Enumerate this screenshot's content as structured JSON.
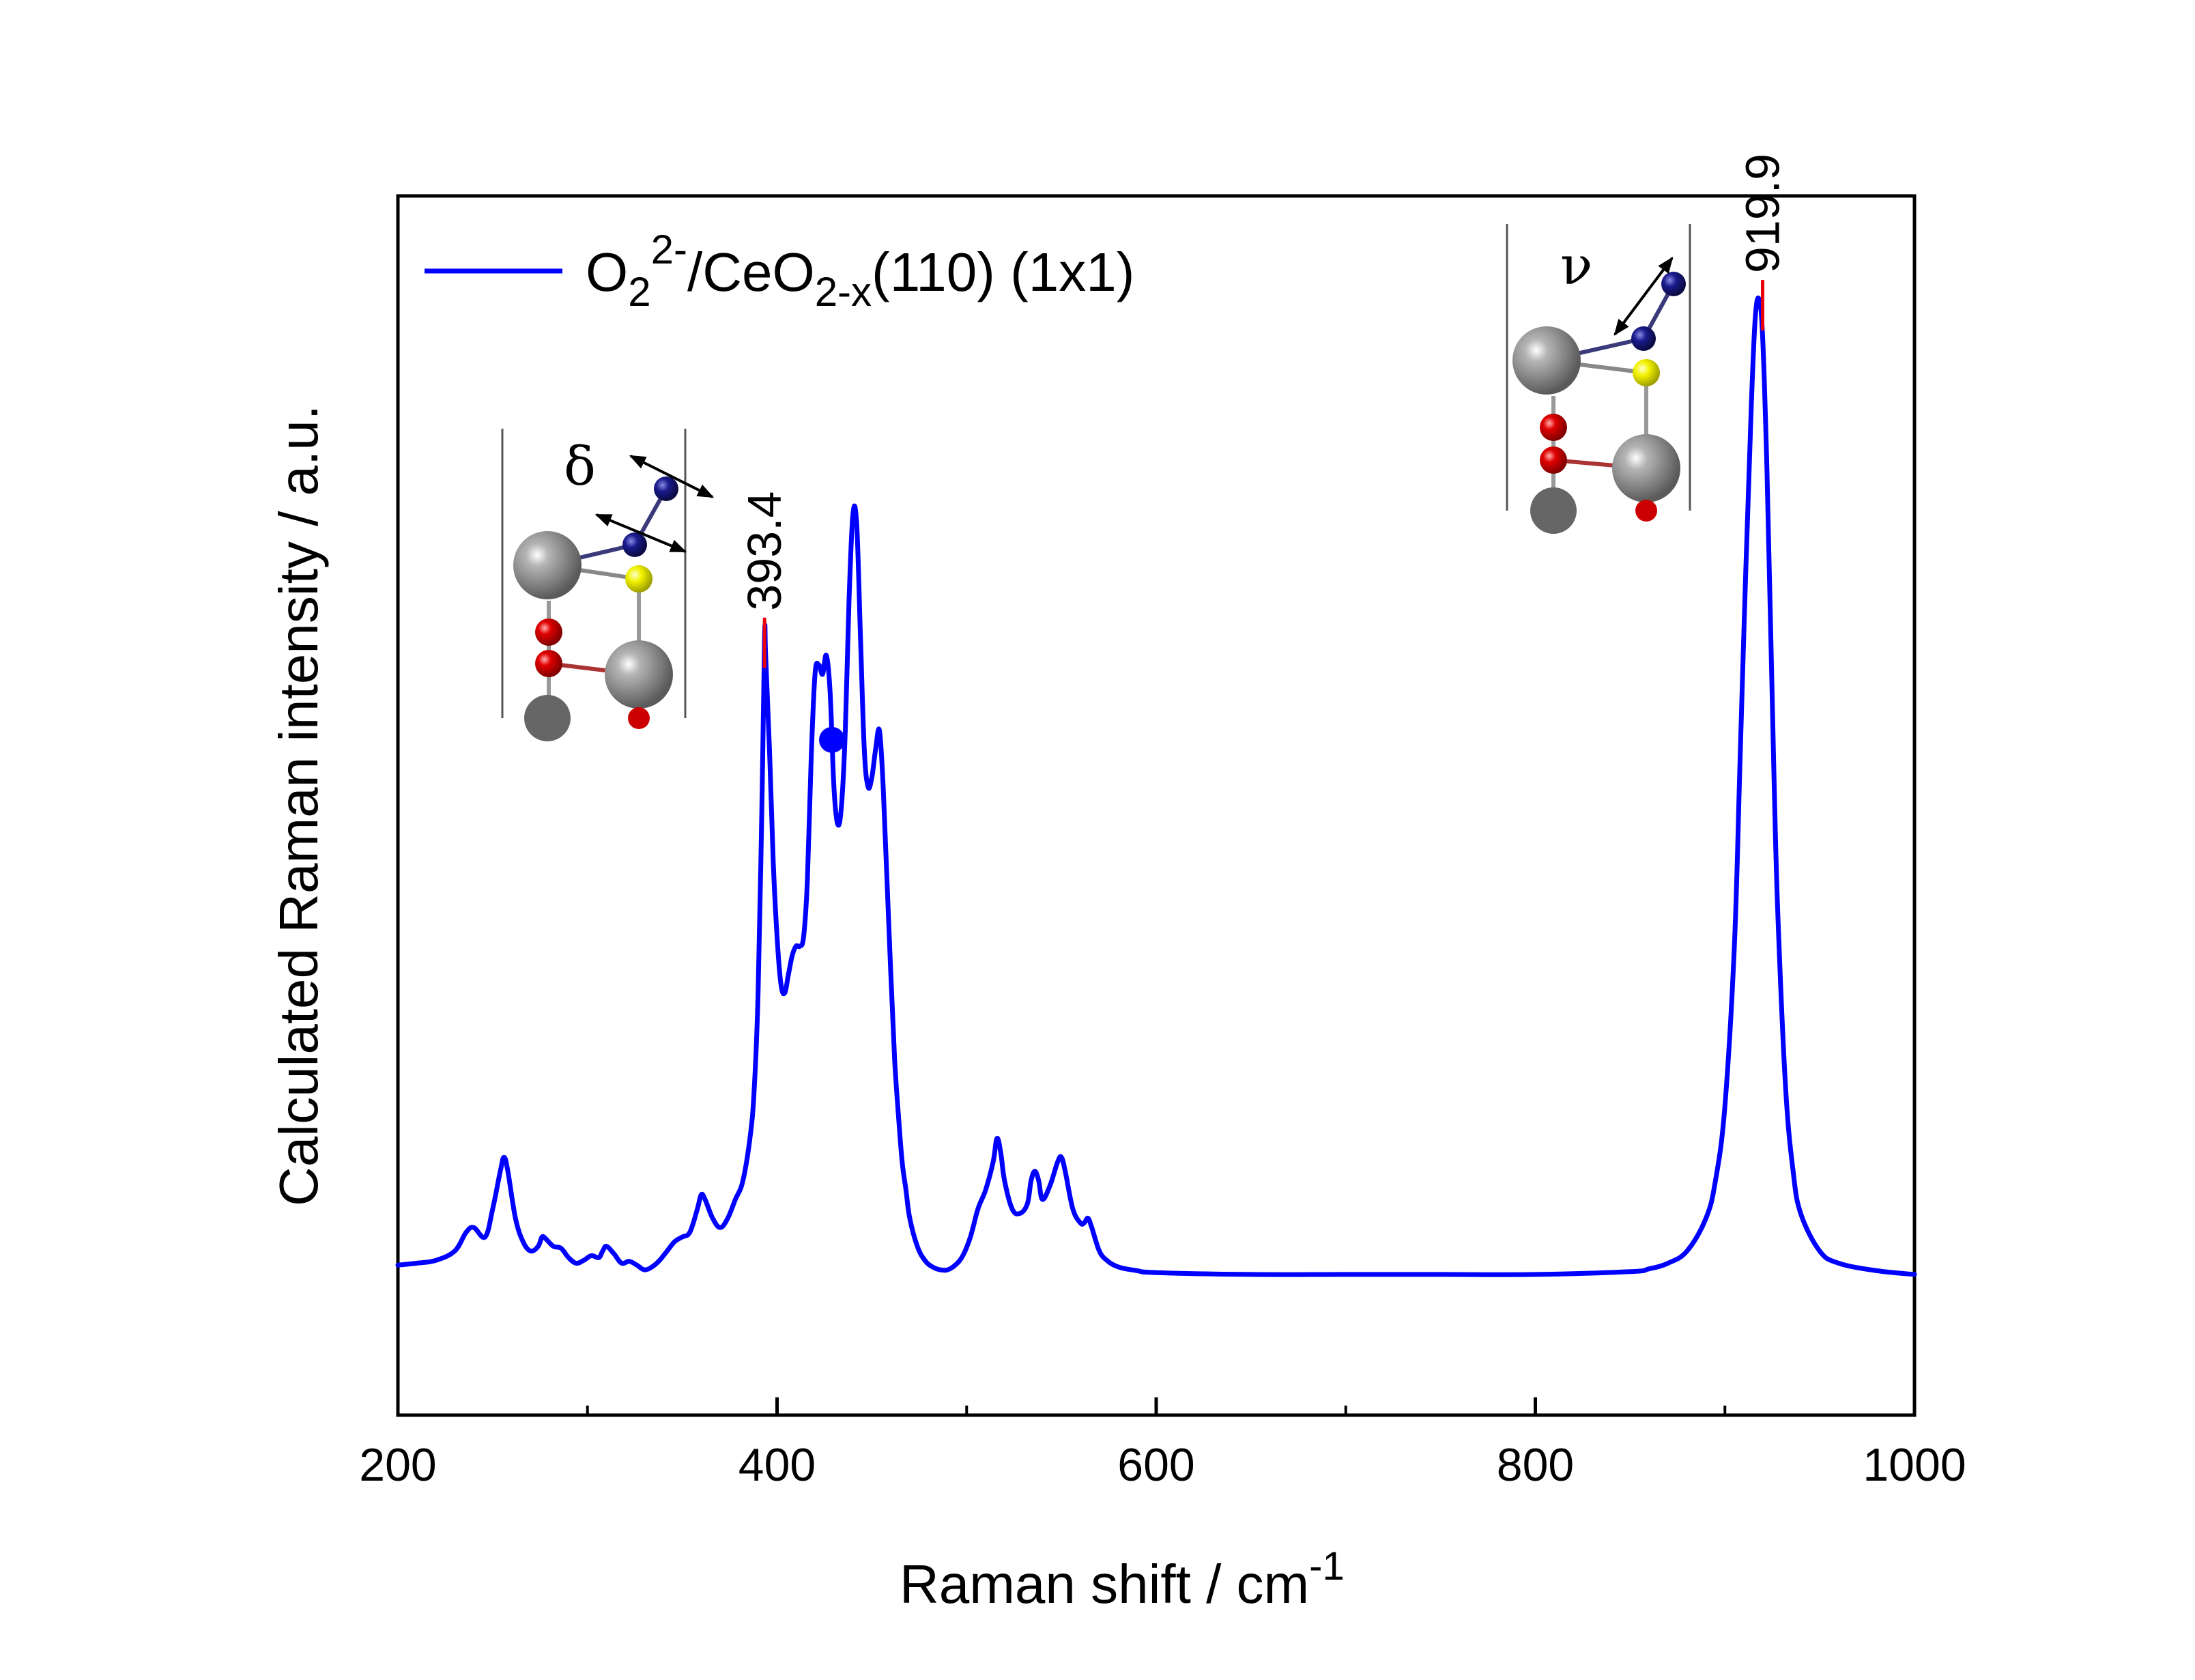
{
  "chart_data": {
    "type": "line",
    "title": "",
    "xlabel": "Raman shift / cm",
    "xlabel_sup": "-1",
    "ylabel": "Calculated Raman intensity / a.u.",
    "xlim": [
      200,
      1000
    ],
    "ylim": [
      -0.15,
      1.15
    ],
    "x_ticks": [
      200,
      400,
      600,
      800,
      1000
    ],
    "x_minor_ticks": [
      300,
      500,
      700,
      900
    ],
    "x_tick_labels": [
      "200",
      "400",
      "600",
      "800",
      "1000"
    ],
    "y_ticks_shown": false,
    "grid": false,
    "legend_position": "top-left",
    "series": [
      {
        "name_parts": {
          "base": "O",
          "sub1": "2",
          "sup1": "2-",
          "mid": "/CeO",
          "sub2": "2-x",
          "tail": "(110) (1x1)"
        },
        "color": "#0000ff",
        "x": [
          200,
          210,
          220,
          230,
          236,
          240,
          246,
          250,
          254,
          256,
          258,
          262,
          266,
          270,
          274,
          276,
          278,
          282,
          286,
          290,
          294,
          298,
          302,
          306,
          308,
          310,
          314,
          318,
          322,
          326,
          330,
          334,
          338,
          342,
          346,
          350,
          354,
          358,
          360,
          362,
          366,
          370,
          374,
          378,
          382,
          386,
          388,
          390,
          392,
          393.4,
          394,
          396,
          398,
          400,
          402,
          404,
          406,
          408,
          410,
          412,
          414,
          416,
          418,
          420,
          422,
          424,
          426,
          428,
          430,
          432,
          434,
          436,
          438,
          440,
          442,
          444,
          446,
          448,
          450,
          452,
          454,
          456,
          458,
          460,
          462,
          464,
          466,
          468,
          470,
          474,
          478,
          482,
          486,
          490,
          494,
          498,
          502,
          506,
          510,
          514,
          516,
          518,
          520,
          524,
          528,
          532,
          534,
          536,
          538,
          540,
          544,
          548,
          550,
          552,
          556,
          560,
          562,
          564,
          566,
          570,
          574,
          580,
          590,
          600,
          650,
          700,
          750,
          800,
          850,
          860,
          870,
          880,
          890,
          895,
          900,
          905,
          908,
          911,
          914,
          916,
          918,
          919.9,
          922,
          924,
          926,
          928,
          932,
          936,
          940,
          950,
          960,
          980,
          1000
        ],
        "y": [
          0.01,
          0.012,
          0.015,
          0.025,
          0.045,
          0.05,
          0.04,
          0.07,
          0.11,
          0.125,
          0.11,
          0.06,
          0.035,
          0.025,
          0.03,
          0.04,
          0.038,
          0.03,
          0.028,
          0.018,
          0.012,
          0.015,
          0.02,
          0.018,
          0.025,
          0.03,
          0.022,
          0.012,
          0.014,
          0.01,
          0.005,
          0.008,
          0.015,
          0.025,
          0.035,
          0.04,
          0.045,
          0.07,
          0.085,
          0.08,
          0.06,
          0.05,
          0.06,
          0.08,
          0.1,
          0.15,
          0.2,
          0.3,
          0.5,
          0.68,
          0.66,
          0.56,
          0.44,
          0.36,
          0.31,
          0.3,
          0.32,
          0.34,
          0.35,
          0.35,
          0.36,
          0.42,
          0.55,
          0.64,
          0.65,
          0.64,
          0.66,
          0.62,
          0.52,
          0.48,
          0.5,
          0.58,
          0.72,
          0.81,
          0.8,
          0.68,
          0.56,
          0.52,
          0.53,
          0.56,
          0.58,
          0.52,
          0.42,
          0.32,
          0.23,
          0.17,
          0.12,
          0.09,
          0.06,
          0.03,
          0.015,
          0.008,
          0.005,
          0.005,
          0.01,
          0.02,
          0.04,
          0.07,
          0.09,
          0.12,
          0.145,
          0.13,
          0.1,
          0.07,
          0.065,
          0.075,
          0.1,
          0.11,
          0.1,
          0.08,
          0.095,
          0.12,
          0.125,
          0.11,
          0.07,
          0.055,
          0.055,
          0.06,
          0.05,
          0.025,
          0.015,
          0.008,
          0.004,
          0.002,
          0.0,
          0.0,
          0.0,
          0.0,
          0.003,
          0.006,
          0.012,
          0.025,
          0.06,
          0.1,
          0.18,
          0.35,
          0.55,
          0.75,
          0.93,
          1.02,
          1.04,
          1.0,
          0.87,
          0.7,
          0.52,
          0.38,
          0.2,
          0.11,
          0.065,
          0.025,
          0.012,
          0.004,
          0.0
        ]
      }
    ],
    "annotations": [
      {
        "text": "393.4",
        "x": 393.4,
        "y": 0.68
      },
      {
        "text": "919.9",
        "x": 919.9,
        "y": 1.04
      }
    ],
    "highlight_point": {
      "x": 429,
      "y": 0.57
    },
    "insets": [
      {
        "mode_label": "δ",
        "near_x": 393.4
      },
      {
        "mode_label": "ν",
        "near_x": 919.9
      }
    ],
    "colors": {
      "line": "#0000ff",
      "peak_marker": "#e8000b",
      "axis": "#000000",
      "atom_ce": "#7f7f7f",
      "atom_o_lattice": "#e00000",
      "atom_o_peroxide": "#1a1a8c",
      "atom_vacancy_site": "#f2f200"
    }
  }
}
